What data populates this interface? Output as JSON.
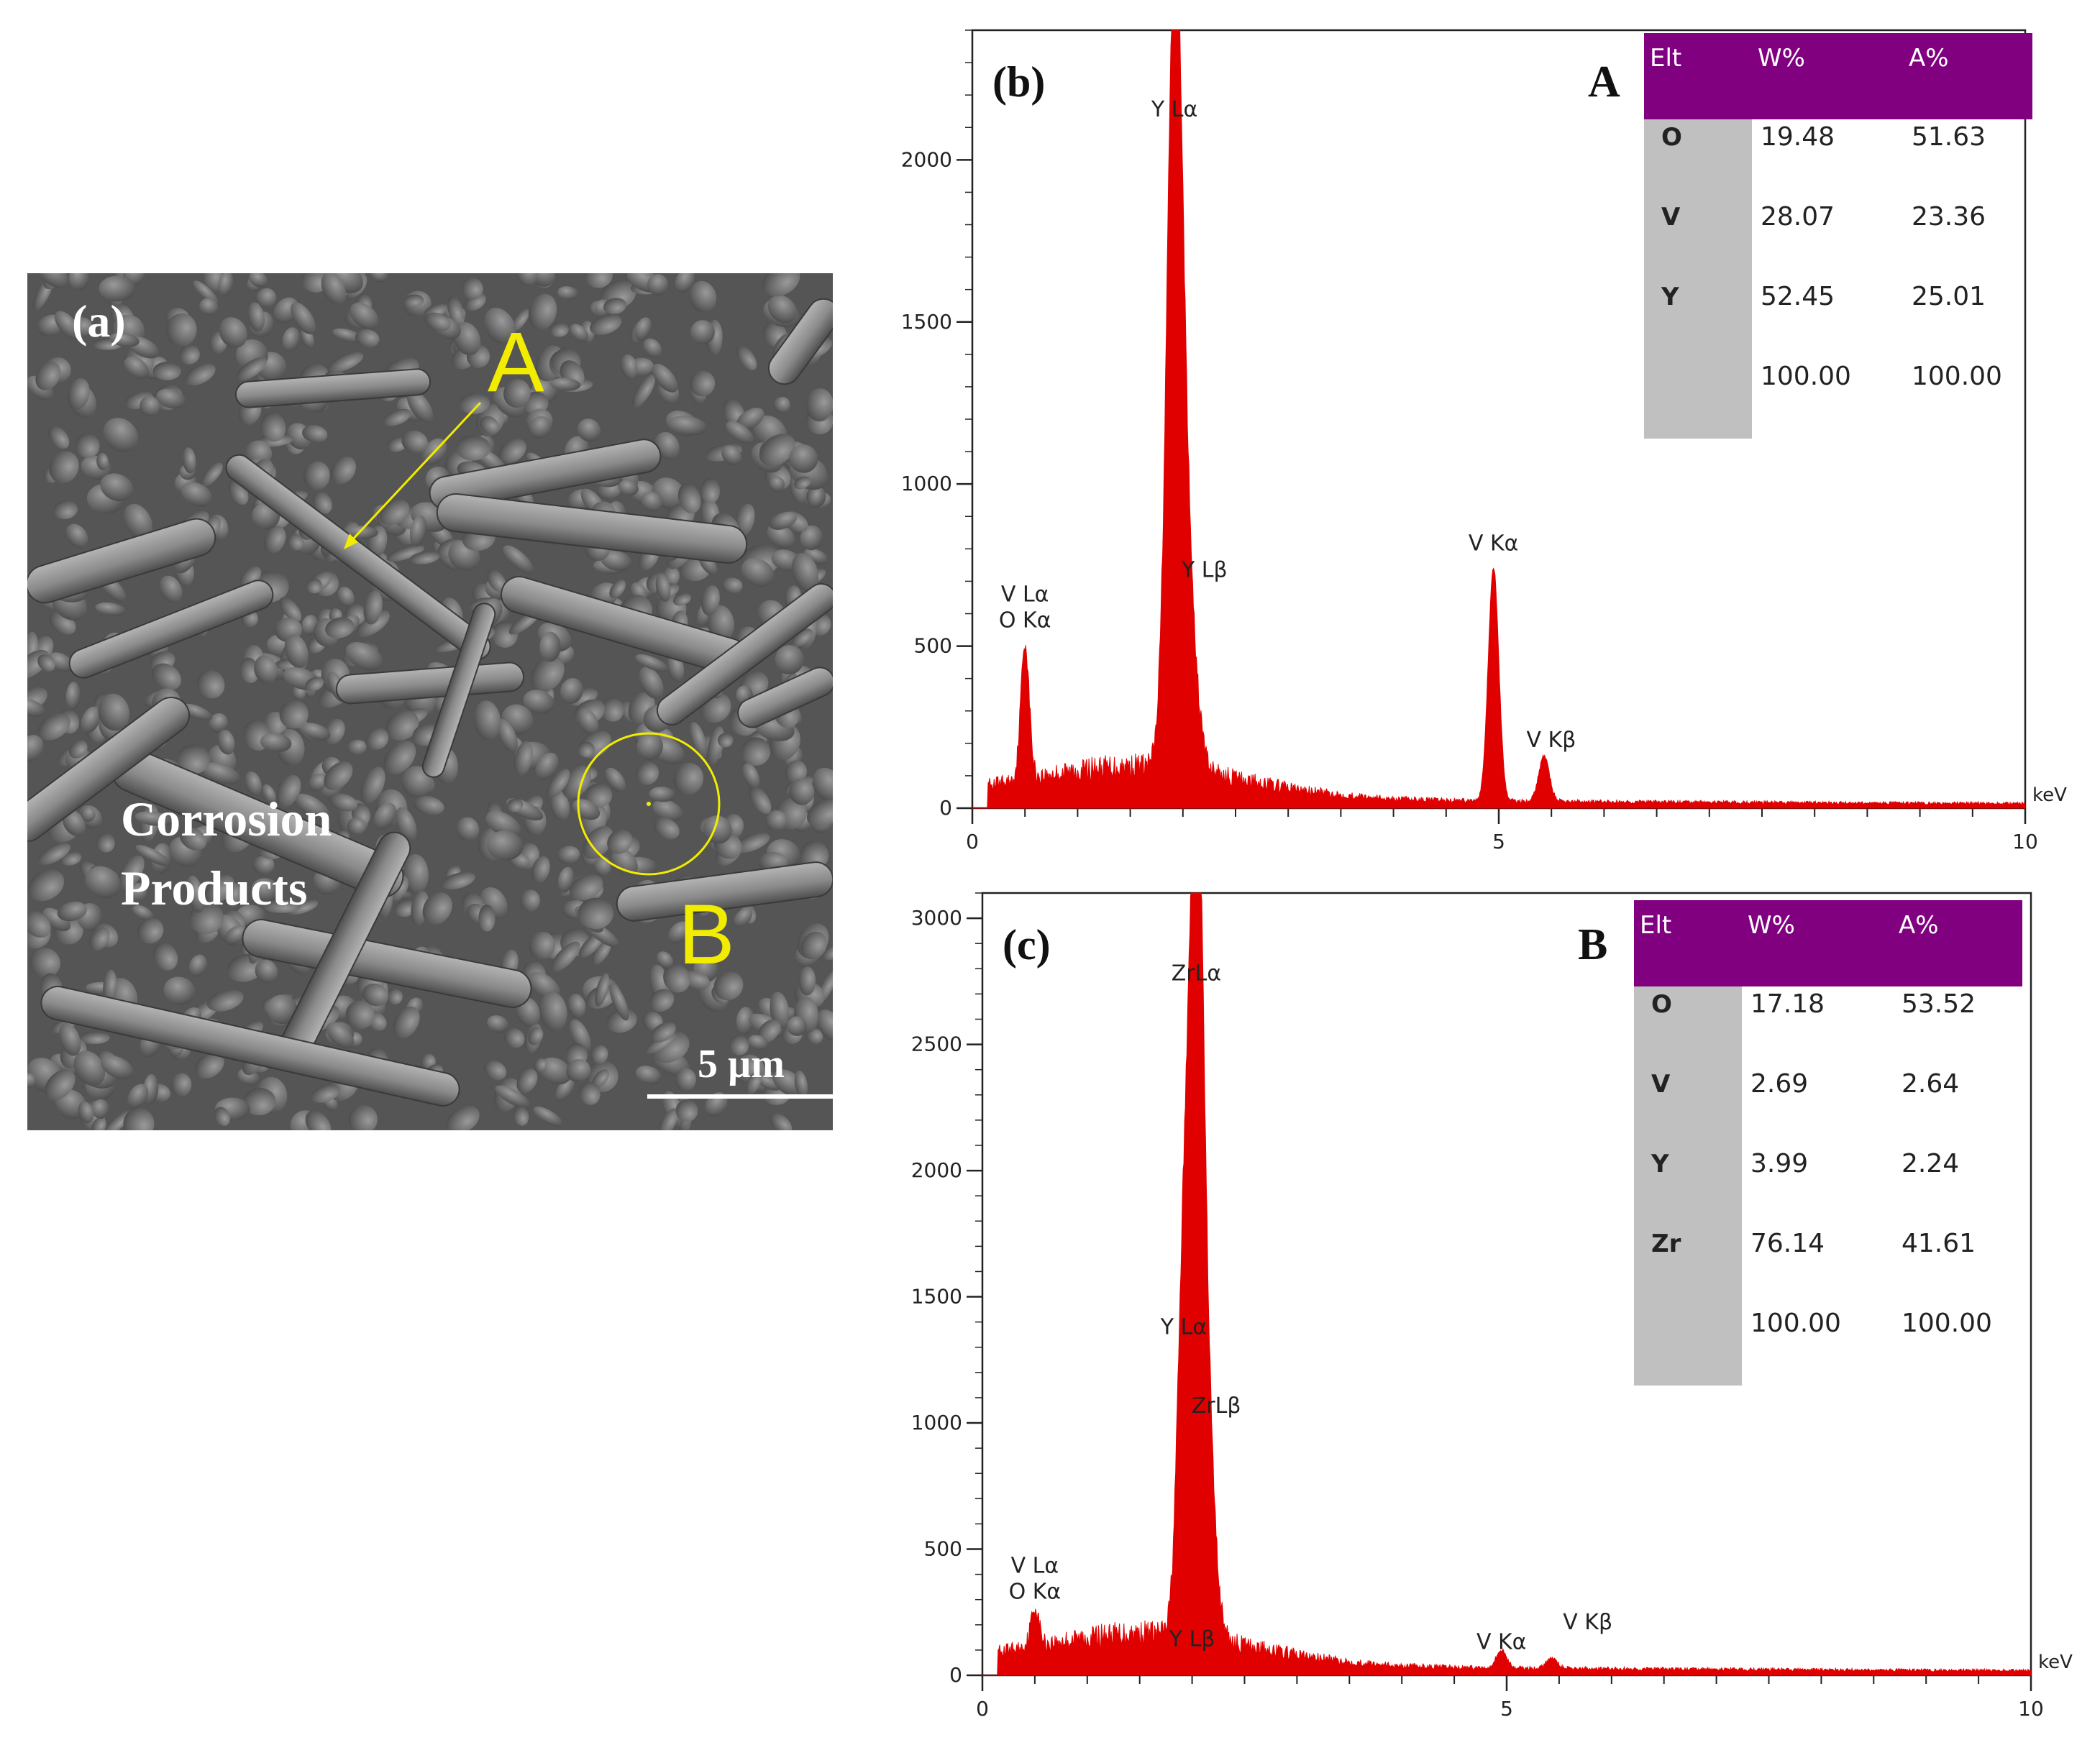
{
  "panel_a": {
    "label": "(a)",
    "point_a": "A",
    "point_b": "B",
    "caption_line1": "Corrosion",
    "caption_line2": "Products",
    "scale_bar": "5 µm",
    "colors": {
      "annotation": "#f2ec00",
      "text": "#ffffff"
    }
  },
  "chart_data": [
    {
      "type": "line",
      "panel_label": "(b)",
      "point_label": "A",
      "xunit": "keV",
      "xlim": [
        0,
        10
      ],
      "ylim": [
        0,
        2400
      ],
      "xticks": [
        0,
        5,
        10
      ],
      "yticks": [
        0,
        500,
        1000,
        1500,
        2000
      ],
      "color": "#e00000",
      "peaks": [
        {
          "label": [
            "V Lα",
            "O Kα"
          ],
          "x": 0.5,
          "y": 420,
          "width": 0.04
        },
        {
          "label": [
            "Y Lα"
          ],
          "x": 1.92,
          "y": 2090,
          "width": 0.07
        },
        {
          "label": [
            "Y Lβ"
          ],
          "x": 2.0,
          "y": 700,
          "width": 0.1
        },
        {
          "label": [
            "V Kα"
          ],
          "x": 4.95,
          "y": 720,
          "width": 0.05
        },
        {
          "label": [
            "V Kβ"
          ],
          "x": 5.43,
          "y": 140,
          "width": 0.05
        }
      ],
      "table": {
        "headers": [
          "Elt",
          "W%",
          "A%"
        ],
        "rows": [
          [
            "O",
            "19.48",
            "51.63"
          ],
          [
            "V",
            "28.07",
            "23.36"
          ],
          [
            "Y",
            "52.45",
            "25.01"
          ],
          [
            "",
            "100.00",
            "100.00"
          ]
        ]
      }
    },
    {
      "type": "line",
      "panel_label": "(c)",
      "point_label": "B",
      "xunit": "keV",
      "xlim": [
        0,
        10
      ],
      "ylim": [
        0,
        3100
      ],
      "xticks": [
        0,
        5,
        10
      ],
      "yticks": [
        0,
        500,
        1000,
        1500,
        2000,
        2500,
        3000
      ],
      "color": "#e00000",
      "peaks": [
        {
          "label": [
            "V Lα",
            "O Kα"
          ],
          "x": 0.5,
          "y": 150,
          "width": 0.04
        },
        {
          "label": [
            "ZrLα"
          ],
          "x": 2.04,
          "y": 2720,
          "width": 0.06
        },
        {
          "label": [
            "Y Lα"
          ],
          "x": 1.92,
          "y": 1380,
          "width": 0.06
        },
        {
          "label": [
            "ZrLβ"
          ],
          "x": 2.12,
          "y": 1000,
          "width": 0.08
        },
        {
          "label": [
            "Y Lβ"
          ],
          "x": 2.0,
          "y": 150,
          "width": 0.08
        },
        {
          "label": [
            "V Kα"
          ],
          "x": 4.95,
          "y": 70,
          "width": 0.05
        },
        {
          "label": [
            "V Kβ"
          ],
          "x": 5.43,
          "y": 40,
          "width": 0.05
        }
      ],
      "table": {
        "headers": [
          "Elt",
          "W%",
          "A%"
        ],
        "rows": [
          [
            "O",
            "17.18",
            "53.52"
          ],
          [
            "V",
            "2.69",
            "2.64"
          ],
          [
            "Y",
            "3.99",
            "2.24"
          ],
          [
            "Zr",
            "76.14",
            "41.61"
          ],
          [
            "",
            "100.00",
            "100.00"
          ]
        ]
      }
    }
  ]
}
